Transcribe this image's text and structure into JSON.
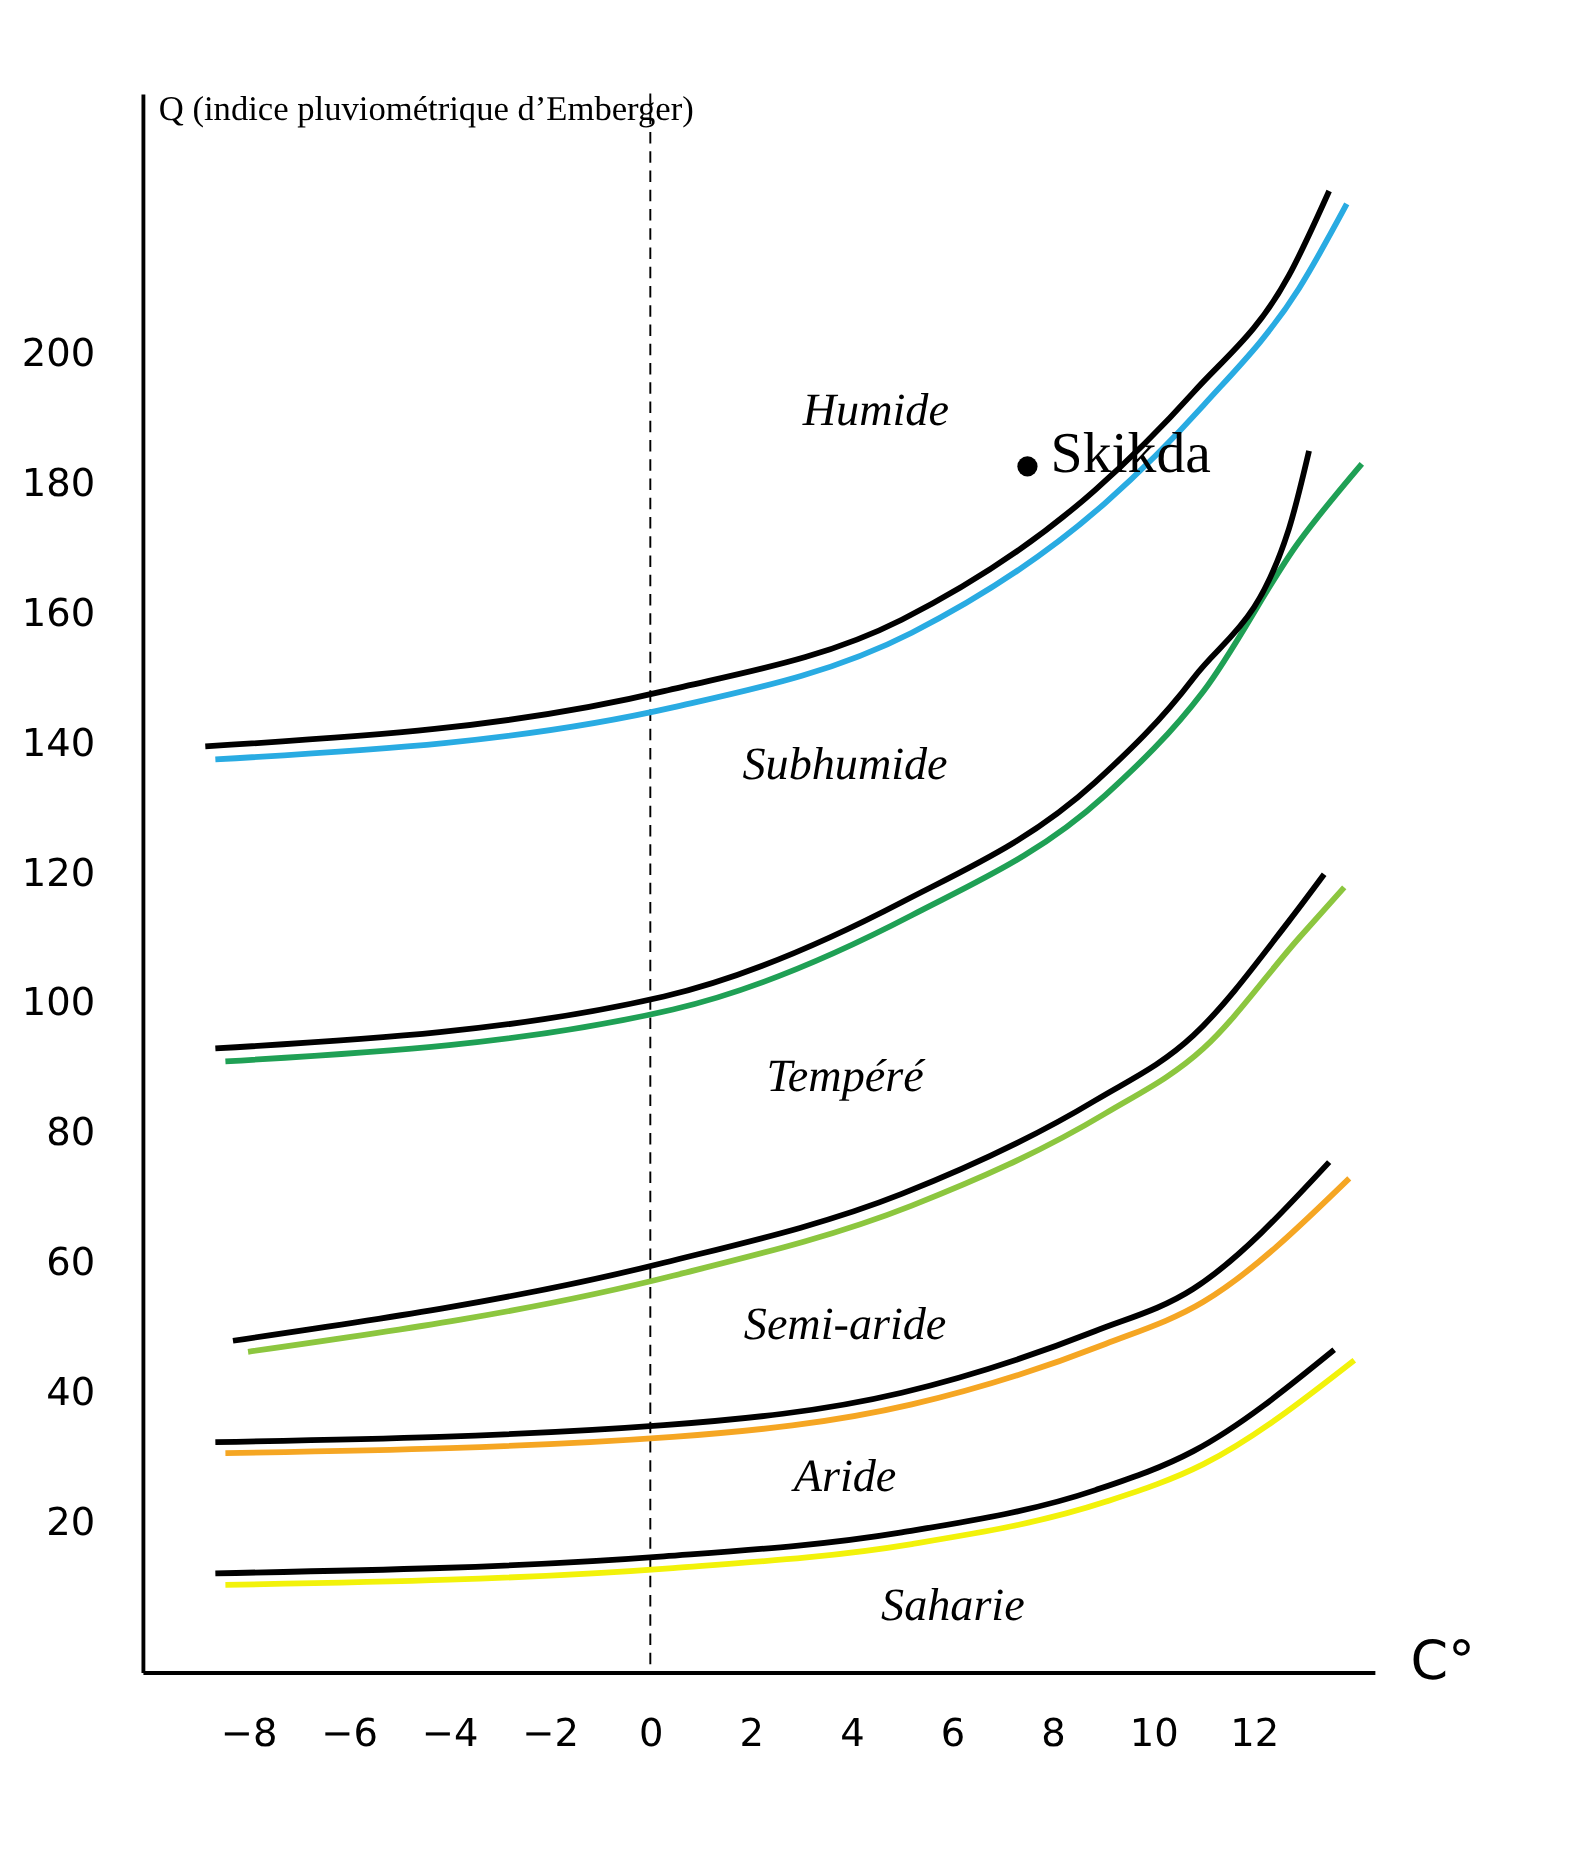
{
  "chart_data": {
    "type": "line",
    "xlabel": "C°",
    "ylabel": "Q (indice pluviométrique d’Emberger)",
    "xlim": [
      -10.1,
      14.4
    ],
    "ylim": [
      -3,
      240
    ],
    "xticks": [
      -8,
      -6,
      -4,
      -2,
      0,
      2,
      4,
      6,
      8,
      10,
      12
    ],
    "yticks": [
      20,
      40,
      60,
      80,
      100,
      120,
      140,
      160,
      180,
      200
    ],
    "grid": false,
    "marker": "none",
    "line_style": "solid",
    "series": [
      {
        "color": "#29abe2",
        "x": [
          -8.65,
          0.45,
          5.2,
          9.05,
          11,
          12.9,
          13.85
        ],
        "values": [
          137.5,
          145.5,
          157,
          177,
          192,
          210,
          223
        ]
      },
      {
        "color": "#000000",
        "x": [
          -8.85,
          0.27,
          5,
          8.85,
          10.8,
          12.7,
          13.5
        ],
        "values": [
          139.5,
          148,
          159,
          179,
          194,
          212,
          225
        ]
      },
      {
        "color": "#1fa055",
        "x": [
          -8.45,
          0.45,
          5.2,
          9.05,
          11,
          12.9,
          14.15
        ],
        "values": [
          91,
          99,
          113.5,
          132,
          148,
          171,
          183
        ]
      },
      {
        "color": "#000000",
        "x": [
          -8.65,
          0.27,
          5,
          8.85,
          10.8,
          12.7,
          13.1
        ],
        "values": [
          93,
          101,
          115.5,
          134,
          150,
          173,
          185
        ]
      },
      {
        "color": "#8cc63f",
        "x": [
          -8,
          0.45,
          5.2,
          9.05,
          11,
          12.9,
          13.8
        ],
        "values": [
          46.3,
          58,
          68.8,
          83,
          93,
          110,
          117.8
        ]
      },
      {
        "color": "#000000",
        "x": [
          -8.3,
          0.27,
          5,
          8.85,
          10.8,
          12.7,
          13.4
        ],
        "values": [
          48,
          60,
          70.6,
          85,
          95,
          112.6,
          119.8
        ]
      },
      {
        "color": "#f5a623",
        "x": [
          -8.45,
          0.45,
          5.2,
          9.05,
          11,
          13.9
        ],
        "values": [
          30.7,
          33.2,
          38.2,
          47.5,
          54,
          73
        ]
      },
      {
        "color": "#000000",
        "x": [
          -8.65,
          0.27,
          5,
          8.85,
          10.8,
          13.5
        ],
        "values": [
          32.4,
          35,
          40,
          49.5,
          56,
          75.5
        ]
      },
      {
        "color": "#f2f20a",
        "x": [
          -8.45,
          0.45,
          5.2,
          9.05,
          11,
          14
        ],
        "values": [
          10.4,
          13,
          16.7,
          23.2,
          29,
          45
        ]
      },
      {
        "color": "#000000",
        "x": [
          -8.65,
          0.27,
          5,
          8.85,
          10.8,
          13.6
        ],
        "values": [
          12.2,
          14.8,
          18.5,
          25,
          31,
          46.6
        ]
      },
      {
        "type": "scatter",
        "name": "Skikda",
        "marker": "circle",
        "color": "#000000",
        "x": [
          7.5
        ],
        "values": [
          182.6
        ]
      }
    ],
    "ref_lines": [
      {
        "axis": "x",
        "value": 0,
        "line_style": "dashed",
        "color": "#000000"
      }
    ],
    "annotations": [
      "Humide",
      "Subhumide",
      "Tempéré",
      "Semi-aride",
      "Aride",
      "Saharie"
    ]
  }
}
